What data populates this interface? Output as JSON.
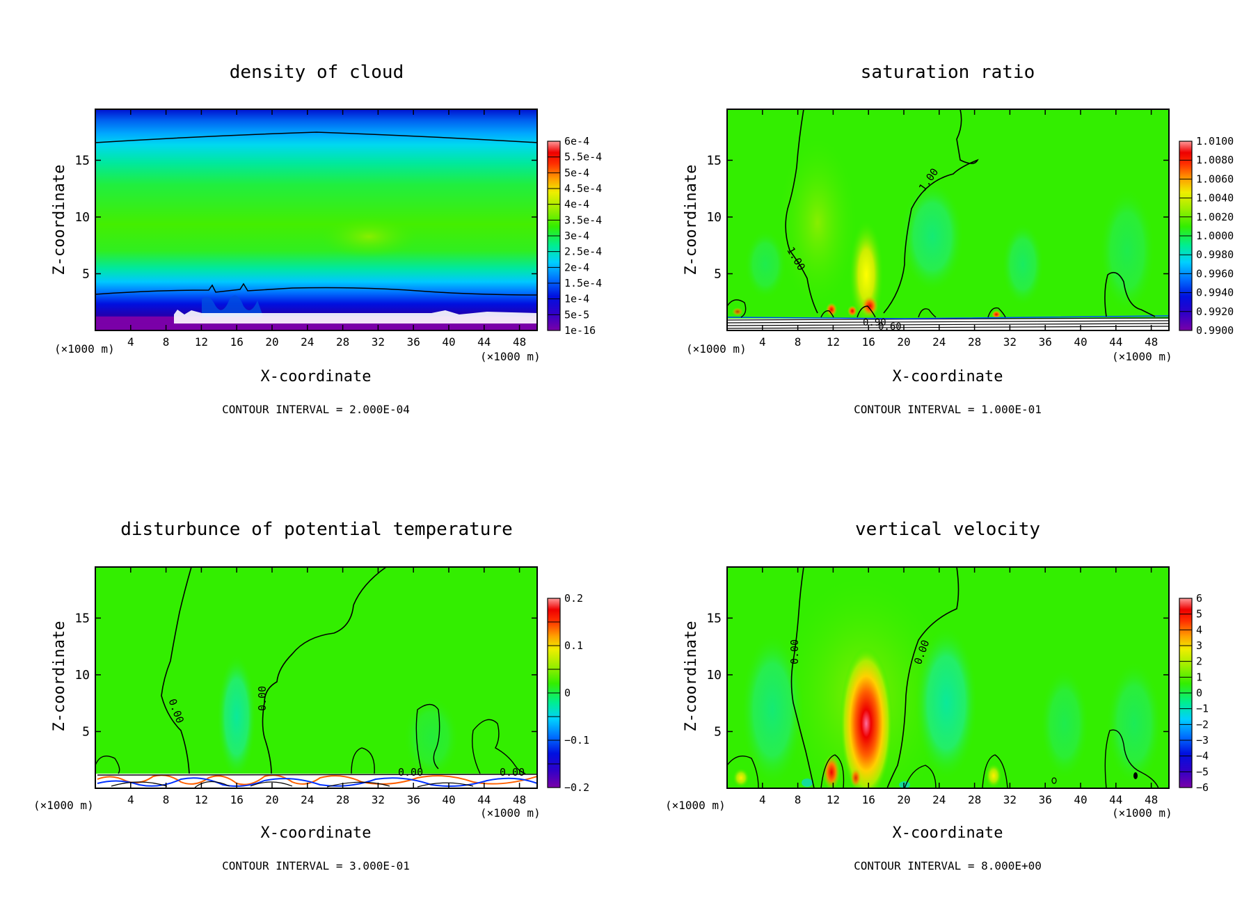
{
  "panels": [
    {
      "title": "density of cloud",
      "contour_interval": "CONTOUR INTERVAL = 2.000E-04",
      "unit_left": "(×1000 m)",
      "unit_right": "(×1000 m)",
      "xlabel": "X-coordinate",
      "ylabel": "Z-coordinate",
      "x_ticks": [
        "4",
        "8",
        "12",
        "16",
        "20",
        "24",
        "28",
        "32",
        "36",
        "40",
        "44",
        "48"
      ],
      "y_ticks": [
        "5",
        "10",
        "15"
      ],
      "colorbar_labels": [
        "6e-4",
        "5.5e-4",
        "5e-4",
        "4.5e-4",
        "4e-4",
        "3.5e-4",
        "3e-4",
        "2.5e-4",
        "2e-4",
        "1.5e-4",
        "1e-4",
        "5e-5",
        "1e-16"
      ],
      "contour_labels": []
    },
    {
      "title": "saturation ratio",
      "contour_interval": "CONTOUR INTERVAL = 1.000E-01",
      "unit_left": "(×1000 m)",
      "unit_right": "(×1000 m)",
      "xlabel": "X-coordinate",
      "ylabel": "Z-coordinate",
      "x_ticks": [
        "4",
        "8",
        "12",
        "16",
        "20",
        "24",
        "28",
        "32",
        "36",
        "40",
        "44",
        "48"
      ],
      "y_ticks": [
        "5",
        "10",
        "15"
      ],
      "colorbar_labels": [
        "1.0100",
        "1.0080",
        "1.0060",
        "1.0040",
        "1.0020",
        "1.0000",
        "0.9980",
        "0.9960",
        "0.9940",
        "0.9920",
        "0.9900"
      ],
      "contour_labels": [
        "1.00",
        "1.00",
        "0.90",
        "0.60"
      ]
    },
    {
      "title": "disturbunce of potential temperature",
      "contour_interval": "CONTOUR INTERVAL = 3.000E-01",
      "unit_left": "(×1000 m)",
      "unit_right": "(×1000 m)",
      "xlabel": "X-coordinate",
      "ylabel": "Z-coordinate",
      "x_ticks": [
        "4",
        "8",
        "12",
        "16",
        "20",
        "24",
        "28",
        "32",
        "36",
        "40",
        "44",
        "48"
      ],
      "y_ticks": [
        "5",
        "10",
        "15"
      ],
      "colorbar_labels": [
        "0.2",
        "",
        "0.1",
        "",
        "0",
        "",
        "−0.1",
        "",
        "−0.2"
      ],
      "contour_labels": [
        "0.00",
        "0.00",
        "0.00",
        "0.00"
      ]
    },
    {
      "title": "vertical velocity",
      "contour_interval": "CONTOUR INTERVAL = 8.000E+00",
      "unit_left": "(×1000 m)",
      "unit_right": "(×1000 m)",
      "xlabel": "X-coordinate",
      "ylabel": "Z-coordinate",
      "x_ticks": [
        "4",
        "8",
        "12",
        "16",
        "20",
        "24",
        "28",
        "32",
        "36",
        "40",
        "44",
        "48"
      ],
      "y_ticks": [
        "5",
        "10",
        "15"
      ],
      "colorbar_labels": [
        "6",
        "5",
        "4",
        "3",
        "2",
        "1",
        "0",
        "−1",
        "−2",
        "−3",
        "−4",
        "−5",
        "−6"
      ],
      "contour_labels": [
        "0.00",
        "0.00"
      ]
    }
  ],
  "chart_data": [
    {
      "type": "heatmap",
      "title": "density of cloud",
      "xlabel": "X-coordinate (×1000 m)",
      "ylabel": "Z-coordinate (×1000 m)",
      "xlim": [
        0,
        50
      ],
      "ylim": [
        0,
        19.5
      ],
      "colorbar": {
        "min": 1e-16,
        "max": 0.0006,
        "levels": [
          1e-16,
          5e-05,
          0.0001,
          0.00015,
          0.0002,
          0.00025,
          0.0003,
          0.00035,
          0.0004,
          0.00045,
          0.0005,
          0.00055,
          0.0006
        ]
      },
      "contour_interval": 0.0002
    },
    {
      "type": "heatmap",
      "title": "saturation ratio",
      "xlabel": "X-coordinate (×1000 m)",
      "ylabel": "Z-coordinate (×1000 m)",
      "xlim": [
        0,
        50
      ],
      "ylim": [
        0,
        19.5
      ],
      "colorbar": {
        "min": 0.99,
        "max": 1.01,
        "levels": [
          0.99,
          0.992,
          0.994,
          0.996,
          0.998,
          1.0,
          1.002,
          1.004,
          1.006,
          1.008,
          1.01
        ]
      },
      "contour_interval": 0.1
    },
    {
      "type": "heatmap",
      "title": "disturbunce of potential temperature",
      "xlabel": "X-coordinate (×1000 m)",
      "ylabel": "Z-coordinate (×1000 m)",
      "xlim": [
        0,
        50
      ],
      "ylim": [
        0,
        19.5
      ],
      "colorbar": {
        "min": -0.2,
        "max": 0.2,
        "levels": [
          -0.2,
          -0.1,
          0,
          0.1,
          0.2
        ]
      },
      "contour_interval": 0.3
    },
    {
      "type": "heatmap",
      "title": "vertical velocity",
      "xlabel": "X-coordinate (×1000 m)",
      "ylabel": "Z-coordinate (×1000 m)",
      "xlim": [
        0,
        50
      ],
      "ylim": [
        0,
        19.5
      ],
      "colorbar": {
        "min": -6,
        "max": 6,
        "levels": [
          -6,
          -5,
          -4,
          -3,
          -2,
          -1,
          0,
          1,
          2,
          3,
          4,
          5,
          6
        ]
      },
      "contour_interval": 8.0
    }
  ],
  "colors": {
    "field_green": "#33ee00",
    "cyan": "#00e0e0",
    "blue": "#1060ff",
    "navy": "#0000b0",
    "purple": "#7a00a8",
    "yellow": "#ffff00",
    "orange": "#ff9000",
    "red": "#ee0000",
    "pink": "#ff9a9a"
  }
}
